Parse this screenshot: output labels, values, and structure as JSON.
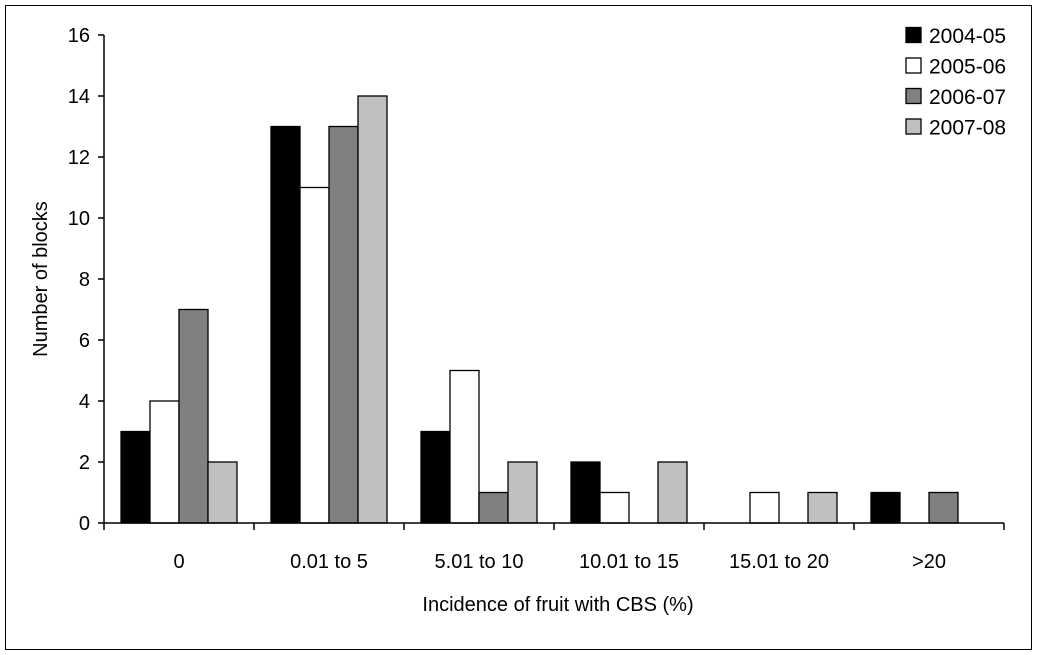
{
  "chart_data": {
    "type": "bar",
    "title": "",
    "xlabel": "Incidence of fruit with CBS (%)",
    "ylabel": "Number of blocks",
    "categories": [
      "0",
      "0.01 to 5",
      "5.01 to 10",
      "10.01 to 15",
      "15.01 to 20",
      ">20"
    ],
    "ylim": [
      0,
      16
    ],
    "yticks": [
      0,
      2,
      4,
      6,
      8,
      10,
      12,
      14,
      16
    ],
    "grid": false,
    "legend_position": "top-right",
    "series": [
      {
        "name": "2004-05",
        "color": "#000000",
        "values": [
          3,
          13,
          3,
          2,
          0,
          1
        ]
      },
      {
        "name": "2005-06",
        "color": "#ffffff",
        "values": [
          4,
          11,
          5,
          1,
          1,
          0
        ]
      },
      {
        "name": "2006-07",
        "color": "#808080",
        "values": [
          7,
          13,
          1,
          0,
          0,
          1
        ]
      },
      {
        "name": "2007-08",
        "color": "#c0c0c0",
        "values": [
          2,
          14,
          2,
          2,
          1,
          0
        ]
      }
    ]
  }
}
